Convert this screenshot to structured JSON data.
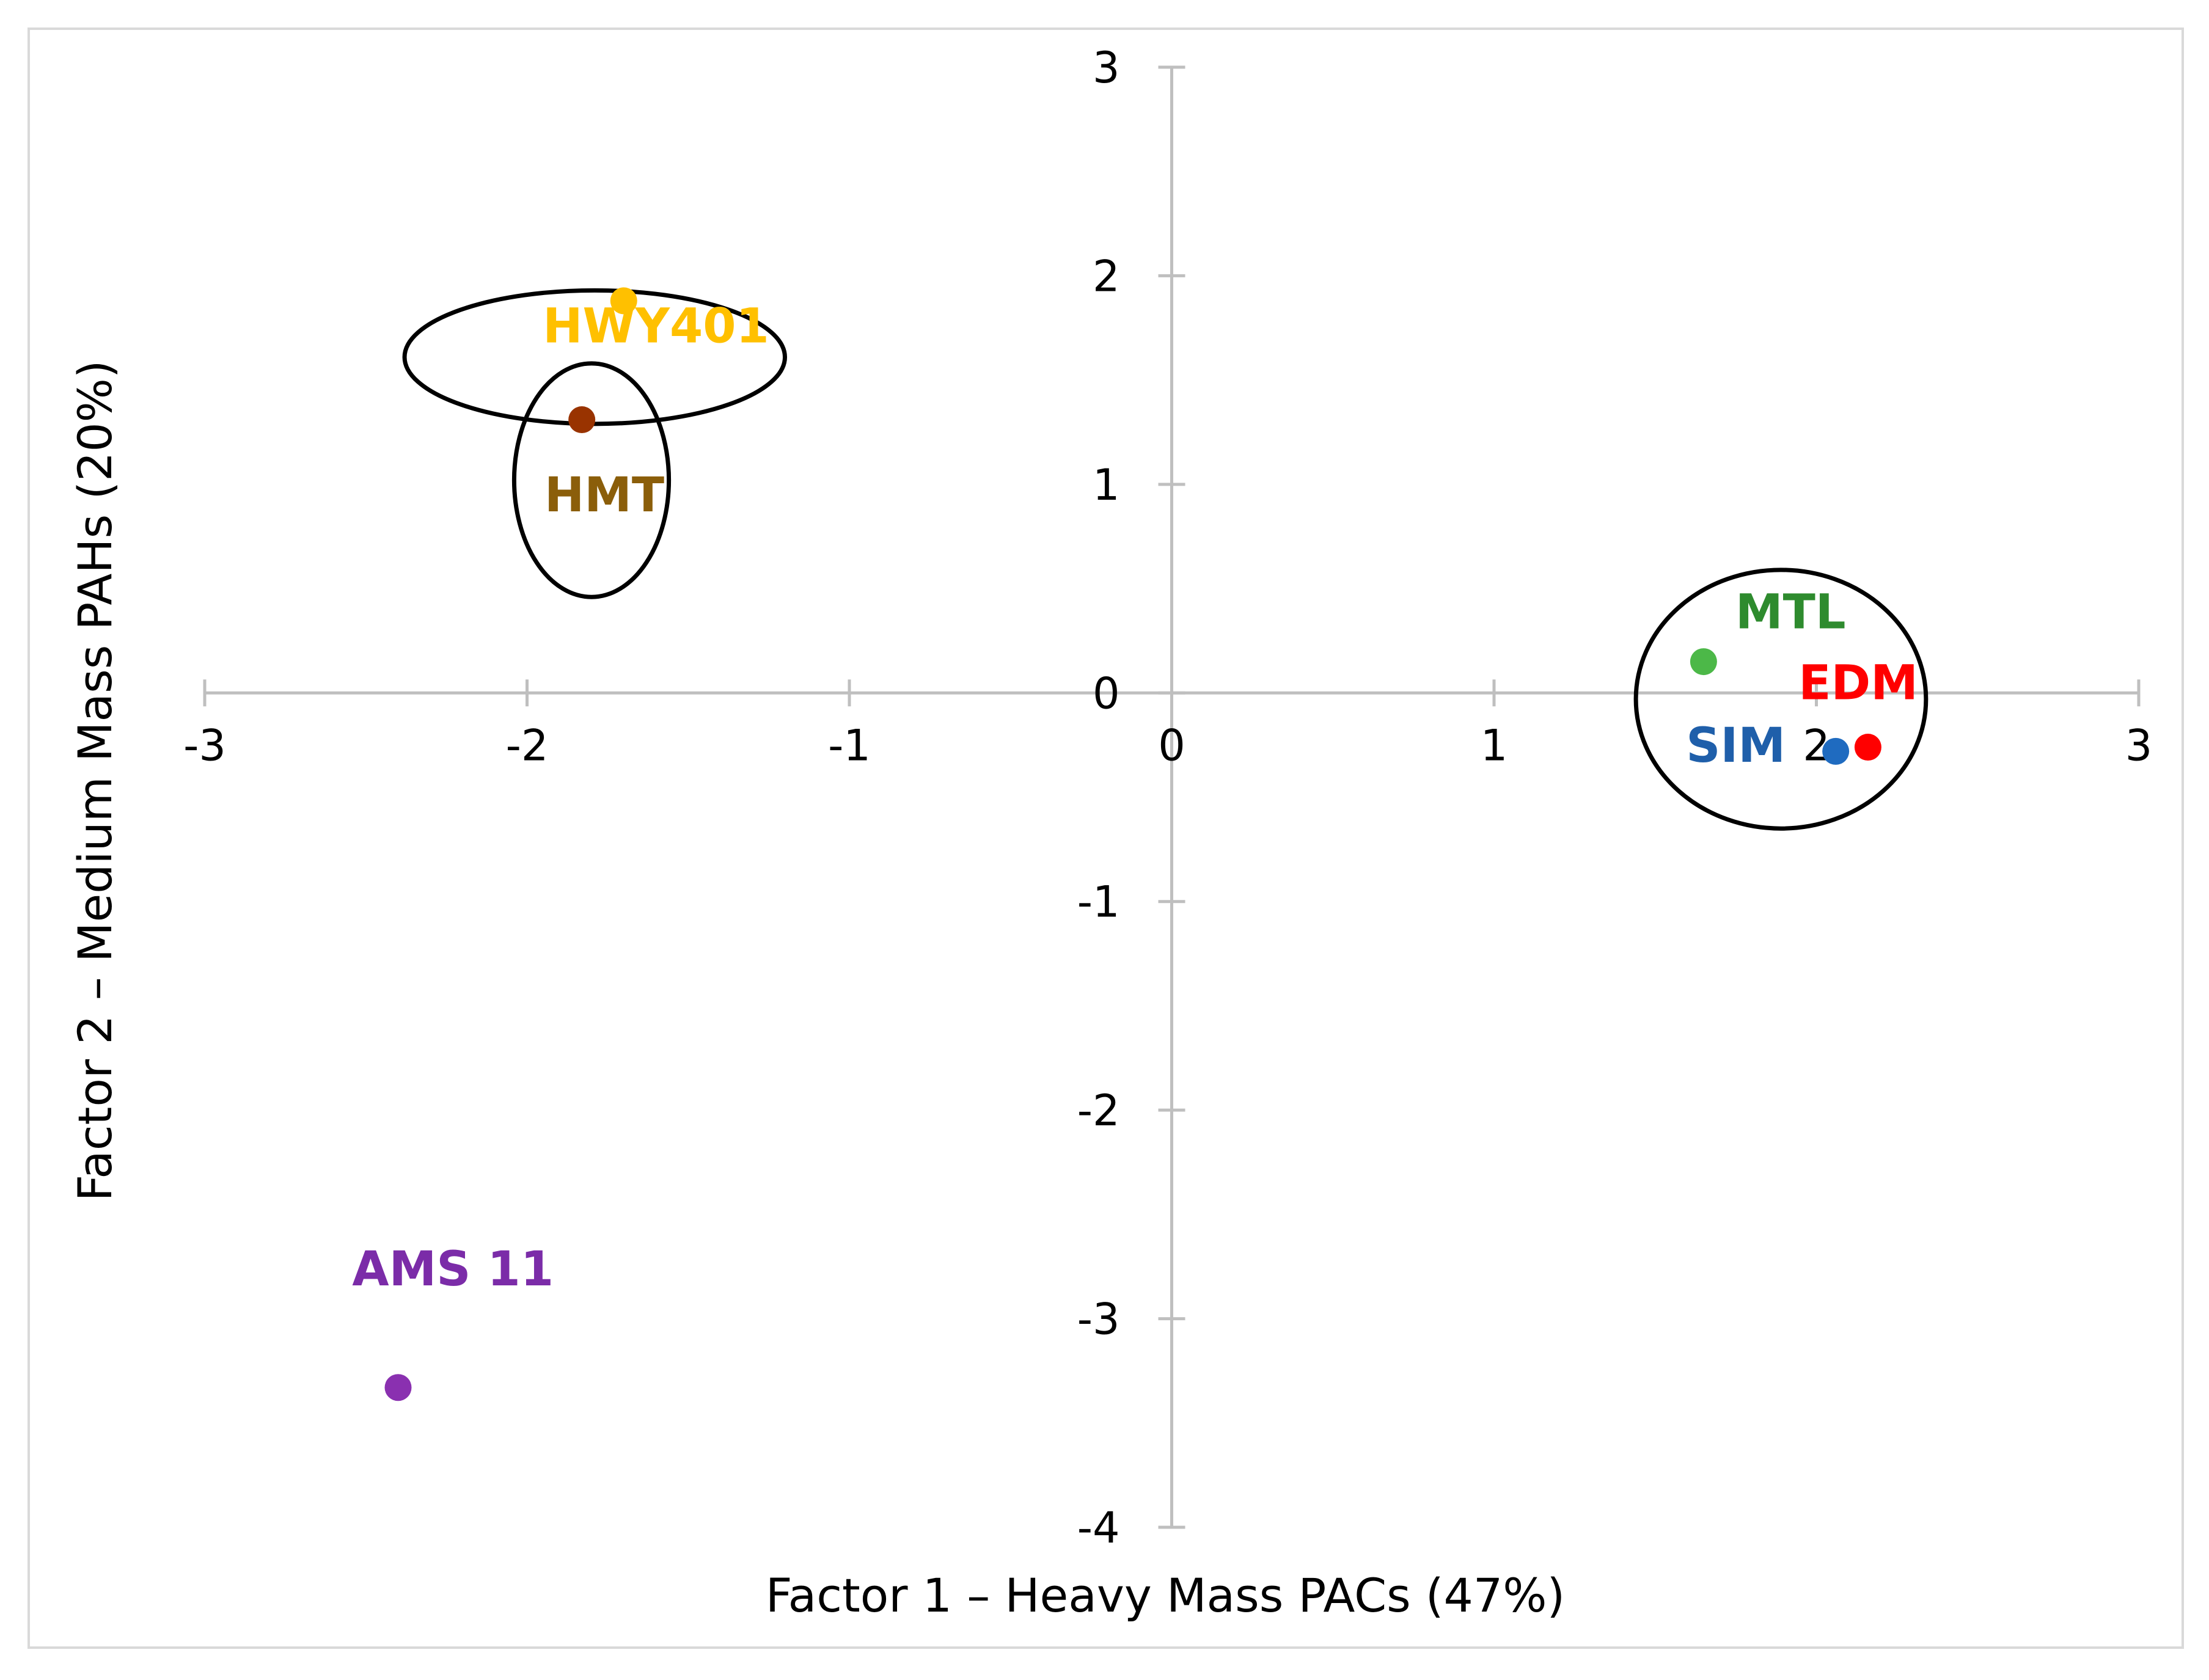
{
  "chart_data": {
    "type": "scatter",
    "title": "",
    "xlabel": "Factor 1 – Heavy Mass PACs (47%)",
    "ylabel": "Factor 2 – Medium Mass PAHs (20%)",
    "xlim": [
      -3,
      3
    ],
    "ylim": [
      -4,
      3
    ],
    "xticks": [
      -3,
      -2,
      -1,
      0,
      1,
      2,
      3
    ],
    "yticks": [
      -4,
      -3,
      -2,
      -1,
      0,
      1,
      2,
      3
    ],
    "grid": false,
    "legend": "none",
    "series": [
      {
        "name": "HWY401",
        "x": -1.7,
        "y": 1.88,
        "color": "#FFC000"
      },
      {
        "name": "HMT",
        "x": -1.83,
        "y": 1.31,
        "color": "#993300"
      },
      {
        "name": "MTL",
        "x": 1.65,
        "y": 0.15,
        "color": "#4CB848"
      },
      {
        "name": "EDM",
        "x": 2.16,
        "y": -0.26,
        "color": "#FF0000"
      },
      {
        "name": "SIM",
        "x": 2.06,
        "y": -0.28,
        "color": "#1F6BC0"
      },
      {
        "name": "AMS 11",
        "x": -2.4,
        "y": -3.33,
        "color": "#8A30B0"
      }
    ],
    "annotations": [
      {
        "text": "HWY401",
        "x": -1.6,
        "y": 1.68,
        "color": "#FFC000"
      },
      {
        "text": "HMT",
        "x": -1.76,
        "y": 0.87,
        "color": "#8B5E0A"
      },
      {
        "text": "MTL",
        "x": 1.92,
        "y": 0.31,
        "color": "#2E8B2E"
      },
      {
        "text": "EDM",
        "x": 2.13,
        "y": -0.03,
        "color": "#FF0000"
      },
      {
        "text": "SIM",
        "x": 1.75,
        "y": -0.33,
        "color": "#1F5FAA"
      },
      {
        "text": "AMS 11",
        "x": -2.23,
        "y": -2.84,
        "color": "#7B2CA8"
      }
    ],
    "groups": [
      {
        "name": "HWY401 cluster",
        "cx": -1.79,
        "cy": 1.61,
        "rx": 0.59,
        "ry": 0.32
      },
      {
        "name": "HMT cluster",
        "cx": -1.8,
        "cy": 1.02,
        "rx": 0.24,
        "ry": 0.56
      },
      {
        "name": "MTL-EDM-SIM cluster",
        "cx": 1.89,
        "cy": -0.03,
        "rx": 0.45,
        "ry": 0.62
      }
    ]
  },
  "colors": {
    "axis": "#BFBFBF",
    "frame": "#D9D9D9",
    "ellipse": "#000000"
  }
}
